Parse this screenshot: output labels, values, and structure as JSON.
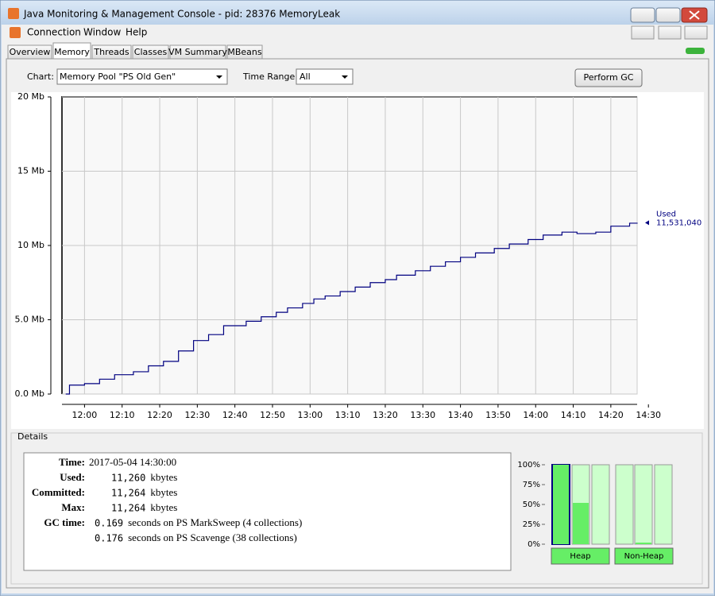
{
  "window": {
    "title": "Java Monitoring & Management Console - pid: 28376 MemoryLeak"
  },
  "menu": [
    "Connection",
    "Window",
    "Help"
  ],
  "tabs": [
    "Overview",
    "Memory",
    "Threads",
    "Classes",
    "VM Summary",
    "MBeans"
  ],
  "controls": {
    "chart_label": "Chart:",
    "chart_value": "Memory Pool \"PS Old Gen\"",
    "range_label": "Time Range:",
    "range_value": "All",
    "button": "Perform GC"
  },
  "chart_data": {
    "type": "line",
    "step": true,
    "grid": true,
    "xlim": [
      "11:54",
      "14:27"
    ],
    "xticks": [
      "12:00",
      "12:10",
      "12:20",
      "12:30",
      "12:40",
      "12:50",
      "13:00",
      "13:10",
      "13:20",
      "13:30",
      "13:40",
      "13:50",
      "14:00",
      "14:10",
      "14:20",
      "14:30"
    ],
    "ylim": [
      0,
      20
    ],
    "yticks": [
      {
        "value": 0,
        "label": "0.0 Mb"
      },
      {
        "value": 5,
        "label": "5.0 Mb"
      },
      {
        "value": 10,
        "label": "10 Mb"
      },
      {
        "value": 15,
        "label": "15 Mb"
      },
      {
        "value": 20,
        "label": "20 Mb"
      }
    ],
    "x": [
      "11:55",
      "11:56",
      "12:00",
      "12:04",
      "12:08",
      "12:13",
      "12:17",
      "12:21",
      "12:25",
      "12:29",
      "12:33",
      "12:37",
      "12:43",
      "12:47",
      "12:51",
      "12:54",
      "12:58",
      "13:01",
      "13:04",
      "13:08",
      "13:12",
      "13:16",
      "13:20",
      "13:23",
      "13:28",
      "13:32",
      "13:36",
      "13:40",
      "13:44",
      "13:49",
      "13:53",
      "13:58",
      "14:02",
      "14:07",
      "14:11",
      "14:16",
      "14:20",
      "14:25",
      "14:27"
    ],
    "series": [
      {
        "name": "Used",
        "color": "#000080",
        "values": [
          0,
          0.6,
          0.7,
          1.0,
          1.3,
          1.5,
          1.9,
          2.2,
          2.9,
          3.6,
          4.0,
          4.6,
          4.9,
          5.2,
          5.5,
          5.8,
          6.1,
          6.4,
          6.6,
          6.9,
          7.2,
          7.5,
          7.7,
          8.0,
          8.3,
          8.6,
          8.9,
          9.2,
          9.5,
          9.8,
          10.1,
          10.4,
          10.7,
          10.9,
          10.8,
          10.9,
          11.3,
          11.5,
          11.53104
        ]
      }
    ],
    "annotation": "11,531,040"
  },
  "details": {
    "title": "Details",
    "rows": [
      {
        "label": "Time:",
        "value": "2017-05-04 14:30:00"
      },
      {
        "label": "Used:",
        "number": "11,260",
        "unit": "kbytes"
      },
      {
        "label": "Committed:",
        "number": "11,264",
        "unit": "kbytes"
      },
      {
        "label": "Max:",
        "number": "11,264",
        "unit": "kbytes"
      },
      {
        "label": "GC time:",
        "number": "0.169",
        "unit": "seconds on PS MarkSweep (4 collections)"
      },
      {
        "number": "0.176",
        "unit": "seconds on PS Scavenge (38 collections)"
      }
    ]
  },
  "usage_bars": {
    "type": "bar",
    "ylim": [
      0,
      100
    ],
    "yticks": [
      {
        "value": 100,
        "label": "100%"
      },
      {
        "value": 75,
        "label": "75%"
      },
      {
        "value": 50,
        "label": "50%"
      },
      {
        "value": 25,
        "label": "25%"
      },
      {
        "value": 0,
        "label": "0%"
      }
    ],
    "groups": [
      "Heap",
      "Non-Heap"
    ],
    "values": [
      100,
      52,
      0,
      0,
      2,
      0
    ],
    "color": "#66ee66"
  }
}
